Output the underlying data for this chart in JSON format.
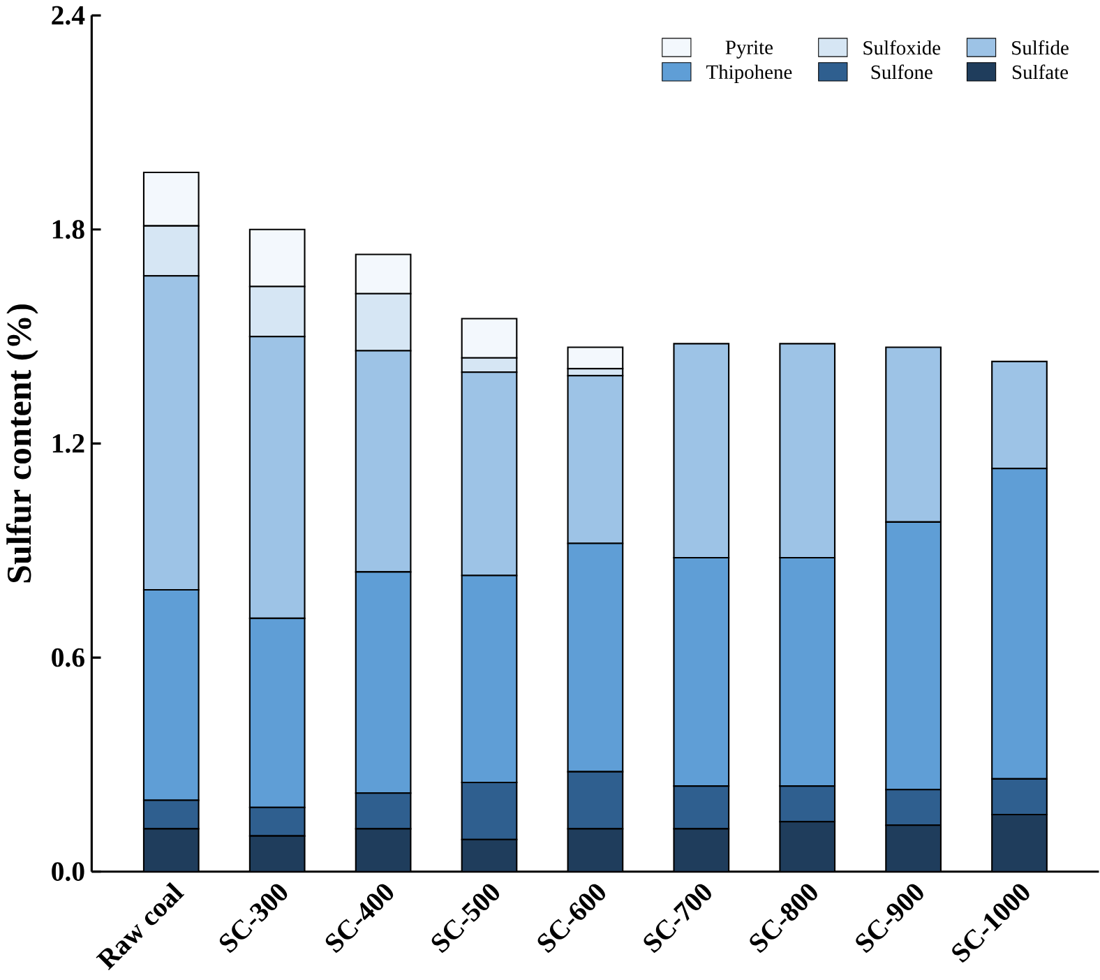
{
  "chart_data": {
    "type": "bar",
    "stacked": true,
    "ylabel": "Sulfur content (%)",
    "categories": [
      "Raw coal",
      "SC-300",
      "SC-400",
      "SC-500",
      "SC-600",
      "SC-700",
      "SC-800",
      "SC-900",
      "SC-1000"
    ],
    "series": [
      {
        "name": "Sulfate",
        "color": "#1f3d5c",
        "values": [
          0.12,
          0.1,
          0.12,
          0.09,
          0.12,
          0.12,
          0.14,
          0.13,
          0.16
        ]
      },
      {
        "name": "Sulfone",
        "color": "#2f5f8f",
        "values": [
          0.08,
          0.08,
          0.1,
          0.16,
          0.16,
          0.12,
          0.1,
          0.1,
          0.1
        ]
      },
      {
        "name": "Thipohene",
        "color": "#5f9ed6",
        "values": [
          0.59,
          0.53,
          0.62,
          0.58,
          0.64,
          0.64,
          0.64,
          0.75,
          0.87
        ]
      },
      {
        "name": "Sulfide",
        "color": "#9dc3e6",
        "values": [
          0.88,
          0.79,
          0.62,
          0.57,
          0.47,
          0.6,
          0.6,
          0.49,
          0.3
        ]
      },
      {
        "name": "Sulfoxide",
        "color": "#d6e6f4",
        "values": [
          0.14,
          0.14,
          0.16,
          0.04,
          0.02,
          0,
          0,
          0,
          0
        ]
      },
      {
        "name": "Pyrite",
        "color": "#f3f8fd",
        "values": [
          0.15,
          0.16,
          0.11,
          0.11,
          0.06,
          0,
          0,
          0,
          0
        ]
      }
    ],
    "ylim": [
      0,
      2.4
    ],
    "yticks": [
      {
        "value": 0,
        "label": "0.0"
      },
      {
        "value": 0.6,
        "label": "0.6"
      },
      {
        "value": 1.2,
        "label": "1.2"
      },
      {
        "value": 1.8,
        "label": "1.8"
      },
      {
        "value": 2.4,
        "label": "2.4"
      }
    ],
    "legend": "top right",
    "grid": false
  }
}
